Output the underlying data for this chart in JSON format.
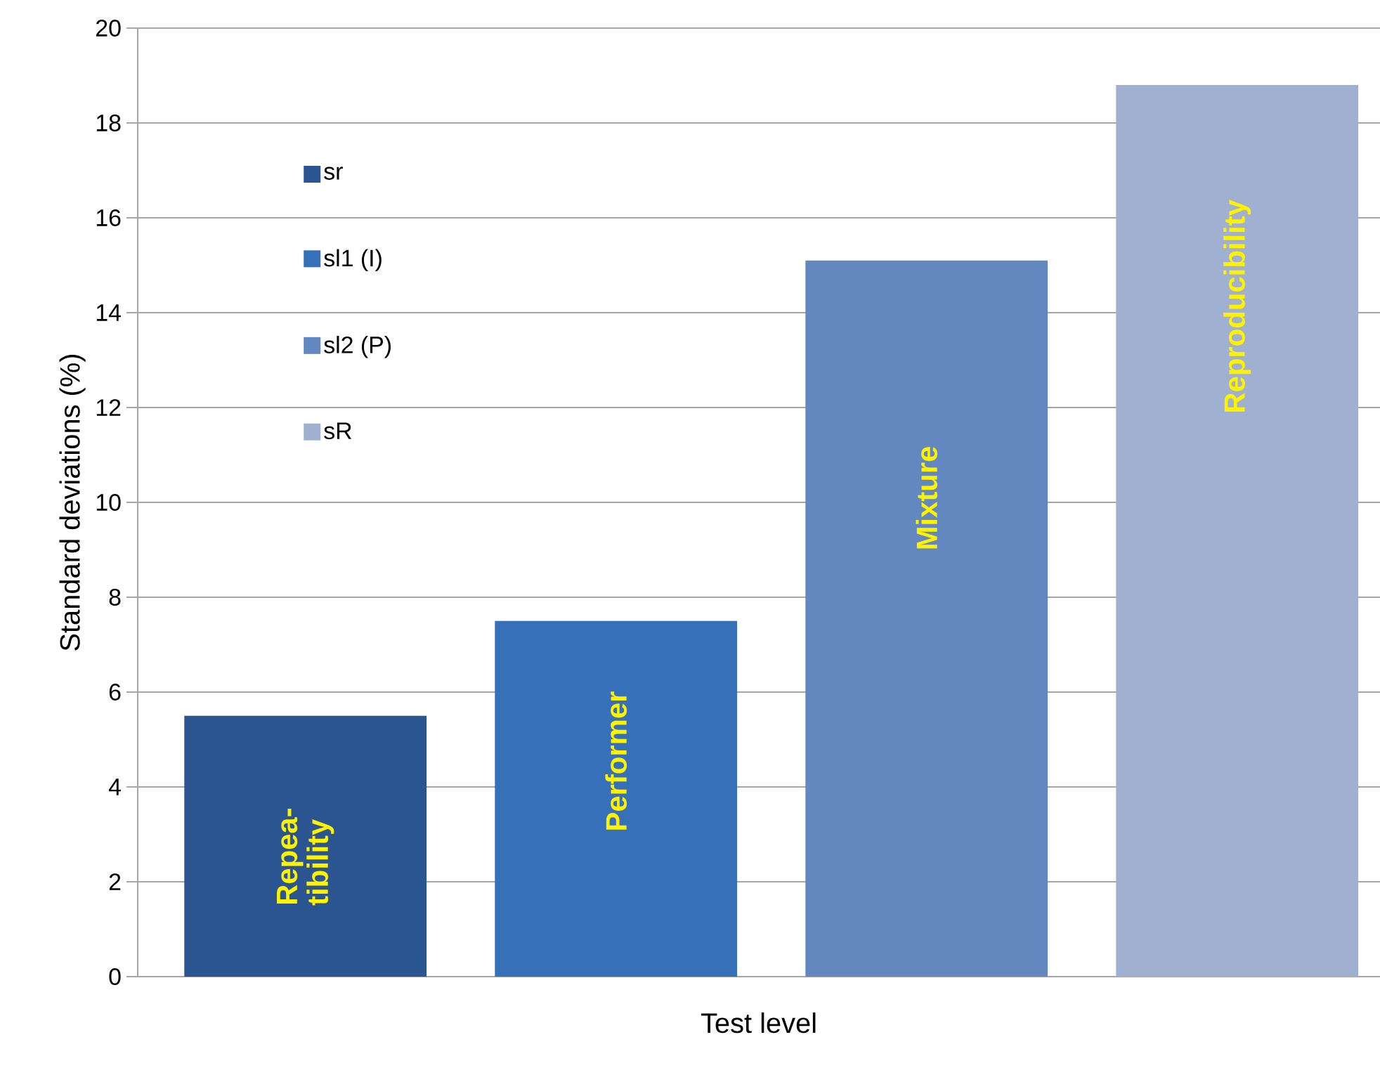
{
  "chart_data": {
    "type": "bar",
    "xlabel": "Test level",
    "ylabel": "Standard deviations (%)",
    "categories": [
      null,
      null,
      null,
      null
    ],
    "series": [
      {
        "name": "sr",
        "color": "#2a5590",
        "values": [
          5.5,
          null,
          null,
          null
        ]
      },
      {
        "name": "sl1 (I)",
        "color": "#3670b8",
        "values": [
          null,
          7.5,
          null,
          null
        ]
      },
      {
        "name": "sl2 (P)",
        "color": "#6388c0",
        "values": [
          null,
          null,
          15.1,
          null
        ]
      },
      {
        "name": "sR",
        "color": "#9fb0d0",
        "values": [
          null,
          null,
          null,
          18.8
        ]
      }
    ],
    "annotations": [
      "Repea- tibility",
      "Performer",
      "Mixture",
      "Reproducibility"
    ],
    "ylim": [
      0,
      20
    ],
    "yticks": [
      0,
      2,
      4,
      6,
      8,
      10,
      12,
      14,
      16,
      18,
      20
    ],
    "grid": "y",
    "legend": "top left"
  }
}
